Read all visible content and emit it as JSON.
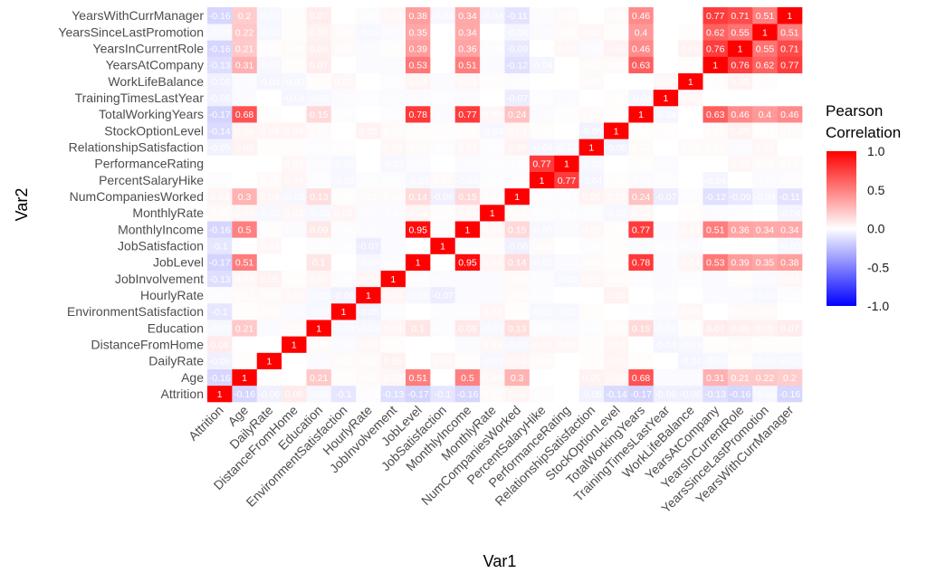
{
  "chart_data": {
    "type": "heatmap",
    "title": "",
    "xlabel": "Var1",
    "ylabel": "Var2",
    "variables": [
      "Attrition",
      "Age",
      "DailyRate",
      "DistanceFromHome",
      "Education",
      "EnvironmentSatisfaction",
      "HourlyRate",
      "JobInvolvement",
      "JobLevel",
      "JobSatisfaction",
      "MonthlyIncome",
      "MonthlyRate",
      "NumCompaniesWorked",
      "PercentSalaryHike",
      "PerformanceRating",
      "RelationshipSatisfaction",
      "StockOptionLevel",
      "TotalWorkingYears",
      "TrainingTimesLastYear",
      "WorkLifeBalance",
      "YearsAtCompany",
      "YearsInCurrentRole",
      "YearsSinceLastPromotion",
      "YearsWithCurrManager"
    ],
    "matrix": [
      [
        1,
        -0.16,
        -0.06,
        0.08,
        -0.03,
        -0.1,
        -0.01,
        -0.13,
        -0.17,
        -0.1,
        -0.16,
        0.02,
        0.04,
        -0.01,
        0,
        -0.05,
        -0.14,
        -0.17,
        -0.06,
        -0.06,
        -0.13,
        -0.16,
        -0.03,
        -0.16
      ],
      [
        -0.16,
        1,
        0.01,
        0,
        0.21,
        0.01,
        0.02,
        0.03,
        0.51,
        0,
        0.5,
        0.03,
        0.3,
        0,
        0,
        0.05,
        0.04,
        0.68,
        -0.02,
        -0.02,
        0.31,
        0.21,
        0.22,
        0.2
      ],
      [
        -0.06,
        0.01,
        1,
        0,
        -0.02,
        0.02,
        0.02,
        0.05,
        0,
        0.03,
        0.01,
        -0.03,
        0.04,
        0.02,
        0,
        0.01,
        0.04,
        0.01,
        0,
        -0.04,
        -0.03,
        0.01,
        -0.03,
        -0.03
      ],
      [
        0.08,
        0,
        0,
        1,
        0.02,
        -0.02,
        0.03,
        0.01,
        0,
        0,
        -0.02,
        0.03,
        -0.03,
        0.04,
        0.03,
        0.01,
        0.04,
        0,
        -0.04,
        -0.03,
        0.01,
        0.02,
        0.01,
        0.01
      ],
      [
        -0.03,
        0.21,
        -0.02,
        0.02,
        1,
        -0.03,
        -0.03,
        0.04,
        0.1,
        -0.01,
        0.09,
        -0.03,
        0.13,
        -0.01,
        -0.02,
        -0.01,
        0.02,
        0.15,
        -0.03,
        0.01,
        0.07,
        0.06,
        0.05,
        0.07
      ],
      [
        -0.1,
        0.01,
        0.02,
        -0.02,
        -0.03,
        1,
        -0.05,
        -0.01,
        0,
        -0.01,
        -0.01,
        0.04,
        0.01,
        -0.03,
        -0.03,
        0.01,
        0,
        -0.01,
        -0.02,
        0.03,
        0,
        0.02,
        0.02,
        0
      ],
      [
        -0.01,
        0.02,
        0.02,
        0.03,
        -0.03,
        -0.05,
        1,
        0.04,
        -0.03,
        -0.07,
        -0.02,
        -0.02,
        0.02,
        -0.01,
        0,
        0,
        0.05,
        0,
        -0.01,
        0,
        -0.02,
        -0.02,
        -0.03,
        -0.01
      ],
      [
        -0.13,
        0.03,
        0.05,
        0.01,
        0.04,
        -0.01,
        0.04,
        1,
        -0.01,
        -0.02,
        -0.02,
        -0.02,
        0.02,
        -0.01,
        -0.03,
        0.03,
        0.02,
        -0.01,
        -0.02,
        -0.01,
        -0.02,
        0.01,
        -0.02,
        0.03
      ],
      [
        -0.17,
        0.51,
        0,
        0,
        0.1,
        0,
        -0.03,
        -0.01,
        1,
        0,
        0.95,
        0.04,
        0.14,
        -0.03,
        -0.02,
        0.02,
        0.01,
        0.78,
        -0.02,
        0.04,
        0.53,
        0.39,
        0.35,
        0.38
      ],
      [
        -0.1,
        0,
        0.03,
        0,
        -0.01,
        -0.01,
        -0.07,
        -0.02,
        0,
        1,
        -0.01,
        0.01,
        -0.06,
        0.02,
        0,
        -0.01,
        0.01,
        -0.02,
        -0.01,
        -0.02,
        0,
        0,
        0,
        -0.03
      ],
      [
        -0.16,
        0.5,
        0.01,
        -0.02,
        0.09,
        -0.01,
        -0.02,
        -0.02,
        0.95,
        -0.01,
        1,
        0.03,
        0.15,
        -0.03,
        -0.02,
        0.03,
        0.01,
        0.77,
        -0.02,
        0.03,
        0.51,
        0.36,
        0.34,
        0.34
      ],
      [
        0.02,
        0.03,
        -0.03,
        0.03,
        -0.03,
        0.04,
        -0.02,
        -0.02,
        0.04,
        0.01,
        0.03,
        1,
        0.02,
        -0.01,
        -0.01,
        -0.01,
        -0.03,
        0.03,
        0,
        0.01,
        -0.02,
        -0.01,
        0,
        -0.04
      ],
      [
        0.04,
        0.3,
        0.04,
        -0.03,
        0.13,
        0.01,
        0.02,
        0.02,
        0.14,
        -0.06,
        0.15,
        0.02,
        1,
        -0.01,
        -0.01,
        0.05,
        0.03,
        0.24,
        -0.07,
        -0.01,
        -0.12,
        -0.09,
        -0.04,
        -0.11
      ],
      [
        -0.01,
        0,
        0.02,
        0.04,
        -0.01,
        -0.03,
        -0.01,
        -0.01,
        -0.03,
        0.02,
        -0.03,
        -0.01,
        -0.01,
        1,
        0.77,
        -0.04,
        0.01,
        -0.02,
        -0.01,
        0,
        -0.04,
        0,
        -0.02,
        -0.01
      ],
      [
        0,
        0,
        0,
        0.03,
        -0.02,
        -0.03,
        0,
        -0.03,
        -0.02,
        0,
        -0.02,
        -0.01,
        -0.01,
        0.77,
        1,
        -0.03,
        0,
        0.01,
        -0.02,
        0,
        0,
        0.03,
        0.02,
        0.02
      ],
      [
        -0.05,
        0.05,
        0.01,
        0.01,
        -0.01,
        0.01,
        0,
        0.03,
        0.02,
        -0.01,
        0.03,
        -0.01,
        0.05,
        -0.04,
        -0.03,
        1,
        -0.05,
        0.02,
        0,
        0.02,
        0.02,
        -0.02,
        0.03,
        0
      ],
      [
        -0.14,
        0.04,
        0.04,
        0.04,
        0.02,
        0,
        0.05,
        0.02,
        0.01,
        0.01,
        0.01,
        -0.03,
        0.03,
        0.01,
        0,
        -0.05,
        1,
        0.01,
        0.01,
        0,
        0.02,
        0.05,
        0.01,
        0.02
      ],
      [
        -0.17,
        0.68,
        0.01,
        0,
        0.15,
        -0.01,
        0,
        -0.01,
        0.78,
        -0.02,
        0.77,
        0.03,
        0.24,
        -0.02,
        0.01,
        0.02,
        0.01,
        1,
        -0.04,
        0,
        0.63,
        0.46,
        0.4,
        0.46
      ],
      [
        -0.06,
        -0.02,
        0,
        -0.04,
        -0.03,
        -0.02,
        -0.01,
        -0.02,
        -0.02,
        -0.01,
        -0.02,
        0,
        -0.07,
        -0.01,
        -0.02,
        0,
        0.01,
        -0.04,
        1,
        0.03,
        0,
        0,
        0,
        0
      ],
      [
        -0.06,
        -0.02,
        -0.04,
        -0.03,
        0.01,
        0.03,
        0,
        -0.01,
        0.04,
        -0.02,
        0.03,
        0.01,
        -0.01,
        0,
        0,
        0.02,
        0,
        0,
        0.03,
        1,
        0.01,
        0.05,
        0.01,
        0
      ],
      [
        -0.13,
        0.31,
        -0.03,
        0.01,
        0.07,
        0,
        -0.02,
        -0.02,
        0.53,
        0,
        0.51,
        -0.02,
        -0.12,
        -0.04,
        0,
        0.02,
        0.02,
        0.63,
        0,
        0.01,
        1,
        0.76,
        0.62,
        0.77
      ],
      [
        -0.16,
        0.21,
        0.01,
        0.02,
        0.06,
        0.02,
        -0.02,
        0.01,
        0.39,
        0,
        0.36,
        -0.01,
        -0.09,
        0,
        0.03,
        -0.02,
        0.05,
        0.46,
        0,
        0.05,
        0.76,
        1,
        0.55,
        0.71
      ],
      [
        -0.03,
        0.22,
        -0.03,
        0.01,
        0.05,
        0.02,
        -0.03,
        -0.02,
        0.35,
        0,
        0.34,
        0,
        -0.04,
        -0.02,
        0.02,
        0.03,
        0.01,
        0.4,
        0,
        0.01,
        0.62,
        0.55,
        1,
        0.51
      ],
      [
        -0.16,
        0.2,
        -0.03,
        0.01,
        0.07,
        0,
        -0.01,
        0.03,
        0.38,
        -0.03,
        0.34,
        -0.04,
        -0.11,
        -0.01,
        0.02,
        0,
        0.02,
        0.46,
        0,
        0,
        0.77,
        0.71,
        0.51,
        1
      ]
    ],
    "color_scale": {
      "low": "#0000ff",
      "mid": "#ffffff",
      "high": "#ff0000",
      "limits": [
        -1,
        1
      ]
    },
    "legend": {
      "title_line1": "Pearson",
      "title_line2": "Correlation",
      "ticks": [
        "1.0",
        "0.5",
        "0.0",
        "-0.5",
        "-1.0"
      ],
      "tick_values": [
        1,
        0.5,
        0,
        -0.5,
        -1
      ],
      "placement": "right"
    },
    "grid": false
  }
}
